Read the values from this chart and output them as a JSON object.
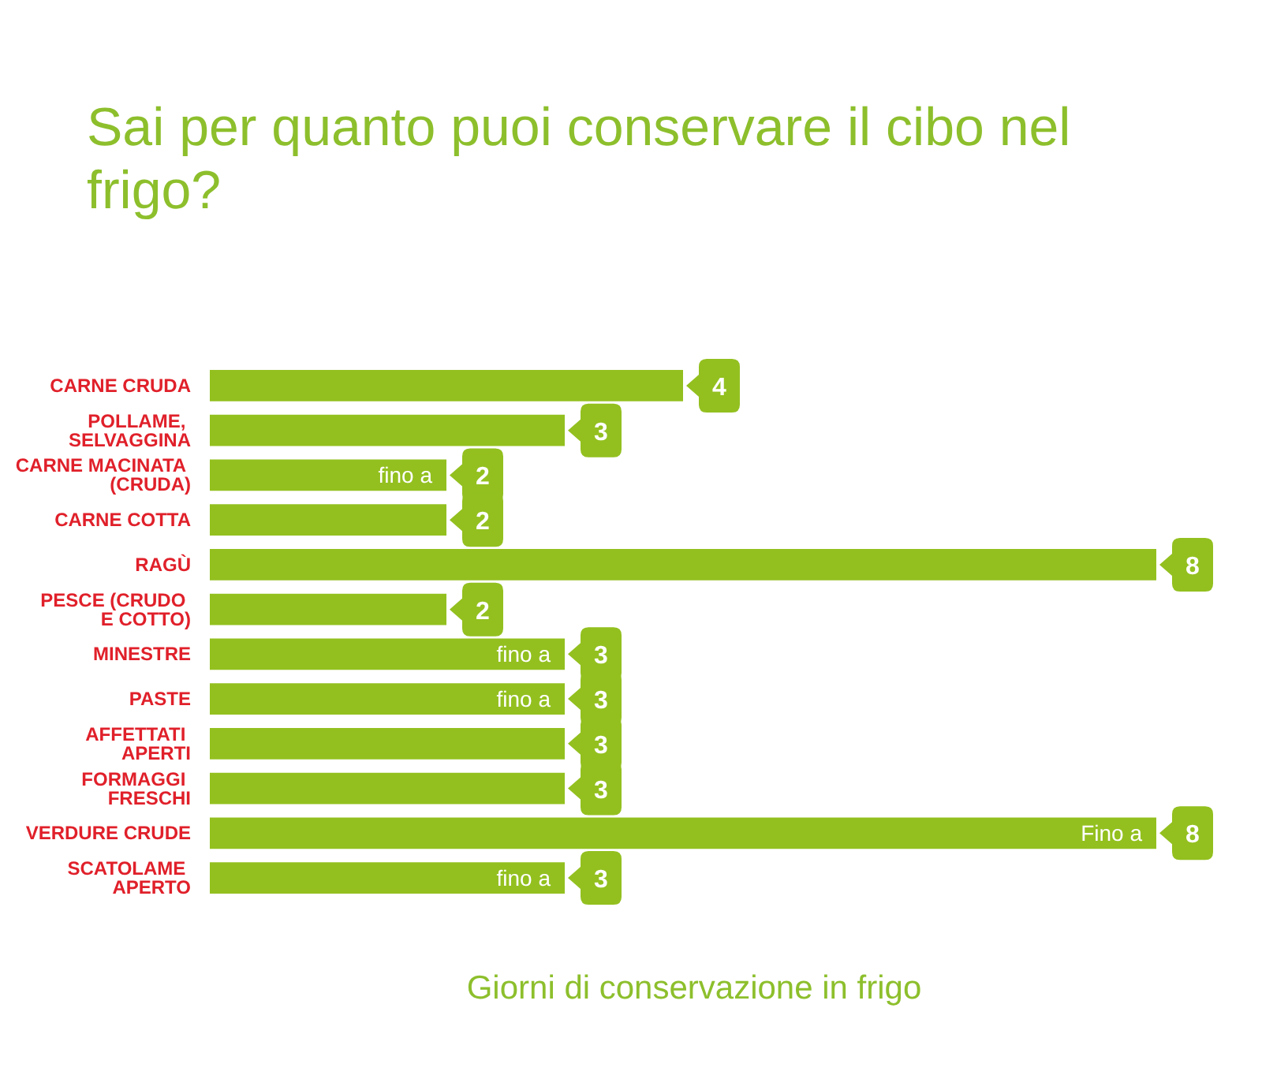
{
  "chart_data": {
    "type": "bar",
    "orientation": "horizontal",
    "title": "Sai per quanto puoi conservare il cibo nel frigo?",
    "xlabel": "Giorni di conservazione in frigo",
    "categories": [
      "CARNE CRUDA",
      "POLLAME,\nSELVAGGINA",
      "CARNE MACINATA\n(CRUDA)",
      "CARNE COTTA",
      "RAGÙ",
      "PESCE (CRUDO\nE COTTO)",
      "MINESTRE",
      "PASTE",
      "AFFETTATI\nAPERTI",
      "FORMAGGI\nFRESCHI",
      "VERDURE CRUDE",
      "SCATOLAME\nAPERTO"
    ],
    "values": [
      4,
      3,
      2,
      2,
      8,
      2,
      3,
      3,
      3,
      3,
      8,
      3
    ],
    "color": "#93c01f",
    "data_labels": true,
    "annotations": [
      {
        "text": "fino a",
        "x": 2,
        "y": "CARNE MACINATA\n(CRUDA)"
      },
      {
        "text": "fino a",
        "x": 3,
        "y": "MINESTRE"
      },
      {
        "text": "fino a",
        "x": 3,
        "y": "PASTE"
      },
      {
        "text": "Fino a",
        "x": 8,
        "y": "VERDURE CRUDE"
      },
      {
        "text": "fino a",
        "x": 3,
        "y": "SCATOLAME\nAPERTO"
      }
    ]
  }
}
